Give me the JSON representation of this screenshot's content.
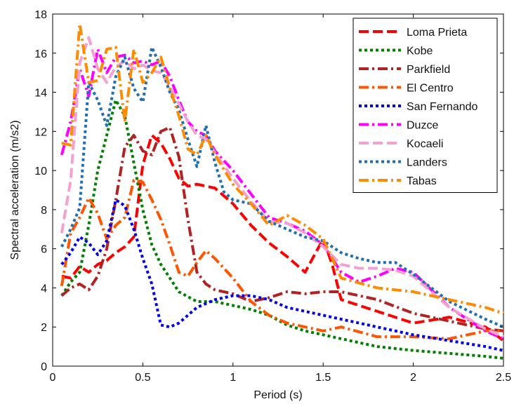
{
  "chart_data": {
    "type": "line",
    "xlabel": "Period (s)",
    "ylabel": "Spectral acceleration (m/s2)",
    "xlim": [
      0,
      2.5
    ],
    "ylim": [
      0,
      18
    ],
    "xticks": [
      0,
      0.5,
      1,
      1.5,
      2,
      2.5
    ],
    "yticks": [
      0,
      2,
      4,
      6,
      8,
      10,
      12,
      14,
      16,
      18
    ],
    "xtick_labels": [
      "0",
      "0.5",
      "1",
      "1.5",
      "2",
      "2.5"
    ],
    "ytick_labels": [
      "0",
      "2",
      "4",
      "6",
      "8",
      "10",
      "12",
      "14",
      "16",
      "18"
    ],
    "grid": false,
    "legend_position": "top-right",
    "series": [
      {
        "name": "Loma Prieta",
        "color": "#ff0000",
        "dash": "dash",
        "x": [
          0.05,
          0.1,
          0.15,
          0.2,
          0.25,
          0.3,
          0.35,
          0.4,
          0.45,
          0.5,
          0.55,
          0.6,
          0.65,
          0.7,
          0.75,
          0.8,
          0.85,
          0.9,
          1.0,
          1.1,
          1.2,
          1.3,
          1.4,
          1.5,
          1.55,
          1.6,
          1.8,
          2.0,
          2.2,
          2.4,
          2.5
        ],
        "y": [
          4.6,
          4.5,
          5.1,
          4.8,
          5.2,
          5.4,
          5.8,
          6.1,
          6.6,
          10.3,
          11.8,
          11.4,
          10.6,
          9.6,
          9.2,
          9.3,
          9.2,
          9.1,
          8.3,
          7.2,
          6.3,
          5.6,
          4.8,
          6.5,
          5.2,
          3.4,
          2.8,
          2.2,
          2.5,
          2.0,
          1.3
        ]
      },
      {
        "name": "Kobe",
        "color": "#008000",
        "dash": "dot",
        "x": [
          0.05,
          0.1,
          0.15,
          0.2,
          0.25,
          0.3,
          0.35,
          0.4,
          0.45,
          0.5,
          0.55,
          0.6,
          0.65,
          0.7,
          0.8,
          0.9,
          1.0,
          1.1,
          1.2,
          1.3,
          1.4,
          1.5,
          1.6,
          1.7,
          1.8,
          2.0,
          2.2,
          2.4,
          2.5
        ],
        "y": [
          3.6,
          4.3,
          4.8,
          7.2,
          10.0,
          11.8,
          13.6,
          12.8,
          10.4,
          8.0,
          6.2,
          5.2,
          4.5,
          3.8,
          3.3,
          3.3,
          3.1,
          2.9,
          2.6,
          2.1,
          1.8,
          1.6,
          1.4,
          1.2,
          1.0,
          0.8,
          0.65,
          0.5,
          0.4
        ]
      },
      {
        "name": "Parkfield",
        "color": "#b22222",
        "dash": "dashdot",
        "x": [
          0.05,
          0.1,
          0.15,
          0.2,
          0.25,
          0.3,
          0.35,
          0.4,
          0.45,
          0.5,
          0.55,
          0.6,
          0.65,
          0.7,
          0.75,
          0.8,
          0.85,
          0.9,
          1.0,
          1.1,
          1.2,
          1.3,
          1.4,
          1.5,
          1.6,
          1.8,
          2.0,
          2.2,
          2.4,
          2.5
        ],
        "y": [
          3.6,
          4.0,
          4.2,
          3.9,
          4.6,
          6.0,
          8.5,
          11.2,
          11.8,
          11.0,
          10.8,
          12.0,
          12.2,
          10.7,
          7.5,
          4.8,
          4.2,
          3.9,
          3.7,
          3.3,
          3.5,
          3.8,
          3.7,
          3.8,
          3.8,
          3.4,
          2.7,
          2.3,
          1.9,
          1.8
        ]
      },
      {
        "name": "El Centro",
        "color": "#ff5500",
        "dash": "dashdot",
        "x": [
          0.05,
          0.1,
          0.15,
          0.2,
          0.25,
          0.3,
          0.35,
          0.4,
          0.45,
          0.5,
          0.55,
          0.6,
          0.65,
          0.7,
          0.75,
          0.8,
          0.85,
          0.9,
          1.0,
          1.1,
          1.2,
          1.3,
          1.4,
          1.5,
          1.6,
          1.8,
          2.0,
          2.2,
          2.4,
          2.5
        ],
        "y": [
          4.1,
          6.8,
          7.6,
          8.6,
          7.8,
          6.5,
          7.2,
          7.6,
          9.5,
          9.4,
          8.5,
          7.5,
          6.2,
          4.8,
          4.6,
          5.3,
          5.9,
          5.5,
          4.5,
          3.3,
          2.6,
          2.2,
          2.0,
          1.8,
          2.0,
          1.5,
          1.5,
          1.4,
          1.8,
          1.8
        ]
      },
      {
        "name": "San Fernando",
        "color": "#0000ee",
        "dash": "dot",
        "x": [
          0.05,
          0.1,
          0.15,
          0.2,
          0.25,
          0.3,
          0.35,
          0.4,
          0.45,
          0.5,
          0.55,
          0.6,
          0.65,
          0.7,
          0.8,
          0.9,
          1.0,
          1.1,
          1.2,
          1.3,
          1.4,
          1.5,
          1.6,
          1.8,
          2.0,
          2.2,
          2.4,
          2.5
        ],
        "y": [
          5.2,
          5.8,
          6.6,
          6.3,
          5.7,
          6.4,
          8.5,
          8.2,
          7.0,
          5.5,
          4.2,
          2.1,
          2.0,
          2.2,
          3.0,
          3.4,
          3.6,
          3.6,
          3.4,
          3.0,
          2.8,
          2.6,
          2.4,
          2.0,
          1.6,
          1.3,
          1.0,
          0.8
        ]
      },
      {
        "name": "Duzce",
        "color": "#ff00ff",
        "dash": "dashdot",
        "x": [
          0.05,
          0.1,
          0.15,
          0.2,
          0.25,
          0.3,
          0.35,
          0.4,
          0.45,
          0.5,
          0.55,
          0.6,
          0.65,
          0.7,
          0.75,
          0.8,
          0.85,
          0.9,
          1.0,
          1.1,
          1.2,
          1.3,
          1.4,
          1.5,
          1.6,
          1.7,
          1.8,
          1.9,
          2.0,
          2.2,
          2.4,
          2.5
        ],
        "y": [
          10.8,
          12.5,
          15.2,
          13.8,
          16.2,
          15.0,
          15.8,
          15.9,
          15.5,
          15.6,
          15.4,
          15.6,
          14.8,
          13.6,
          12.5,
          12.0,
          11.8,
          11.0,
          10.0,
          8.8,
          7.6,
          7.3,
          6.9,
          6.2,
          4.8,
          4.3,
          4.6,
          5.0,
          4.8,
          3.0,
          1.8,
          1.4
        ]
      },
      {
        "name": "Kocaeli",
        "color": "#f4a0d0",
        "dash": "dash",
        "x": [
          0.05,
          0.1,
          0.15,
          0.2,
          0.25,
          0.3,
          0.35,
          0.4,
          0.45,
          0.5,
          0.55,
          0.6,
          0.65,
          0.7,
          0.75,
          0.8,
          0.85,
          0.9,
          1.0,
          1.1,
          1.2,
          1.3,
          1.4,
          1.5,
          1.6,
          1.7,
          1.8,
          1.9,
          2.0,
          2.2,
          2.4,
          2.5
        ],
        "y": [
          6.8,
          9.5,
          15.5,
          16.8,
          15.2,
          14.5,
          15.3,
          15.6,
          15.2,
          15.4,
          15.1,
          15.0,
          14.3,
          13.4,
          12.5,
          11.8,
          11.6,
          10.9,
          9.6,
          8.4,
          7.4,
          7.3,
          6.8,
          6.1,
          5.2,
          5.0,
          5.0,
          4.9,
          4.6,
          3.0,
          1.9,
          1.5
        ]
      },
      {
        "name": "Landers",
        "color": "#1f6fb4",
        "dash": "dot",
        "x": [
          0.05,
          0.1,
          0.15,
          0.2,
          0.25,
          0.3,
          0.35,
          0.4,
          0.45,
          0.5,
          0.55,
          0.6,
          0.65,
          0.7,
          0.75,
          0.8,
          0.85,
          0.9,
          0.95,
          1.0,
          1.1,
          1.2,
          1.3,
          1.4,
          1.5,
          1.6,
          1.7,
          1.8,
          1.9,
          2.0,
          2.2,
          2.4,
          2.5
        ],
        "y": [
          6.1,
          7.0,
          8.1,
          14.5,
          13.6,
          12.3,
          14.8,
          15.8,
          14.2,
          13.5,
          16.3,
          15.3,
          14.0,
          13.1,
          11.6,
          10.2,
          12.3,
          10.4,
          8.9,
          8.5,
          8.3,
          7.4,
          7.0,
          6.6,
          6.4,
          5.8,
          5.5,
          5.3,
          5.3,
          4.7,
          3.3,
          2.4,
          2.0
        ]
      },
      {
        "name": "Tabas",
        "color": "#ff8c00",
        "dash": "dashdot",
        "x": [
          0.05,
          0.1,
          0.15,
          0.2,
          0.25,
          0.3,
          0.35,
          0.4,
          0.45,
          0.5,
          0.55,
          0.6,
          0.65,
          0.7,
          0.75,
          0.8,
          0.85,
          0.9,
          1.0,
          1.1,
          1.2,
          1.3,
          1.4,
          1.5,
          1.6,
          1.8,
          2.0,
          2.2,
          2.4,
          2.5
        ],
        "y": [
          11.4,
          11.3,
          17.5,
          14.5,
          14.6,
          16.2,
          16.3,
          12.5,
          16.2,
          14.5,
          15.0,
          15.8,
          14.2,
          12.8,
          11.1,
          10.8,
          11.8,
          10.8,
          9.3,
          8.3,
          7.2,
          7.7,
          7.2,
          6.5,
          4.5,
          4.0,
          3.8,
          3.4,
          3.0,
          2.7
        ]
      }
    ]
  }
}
